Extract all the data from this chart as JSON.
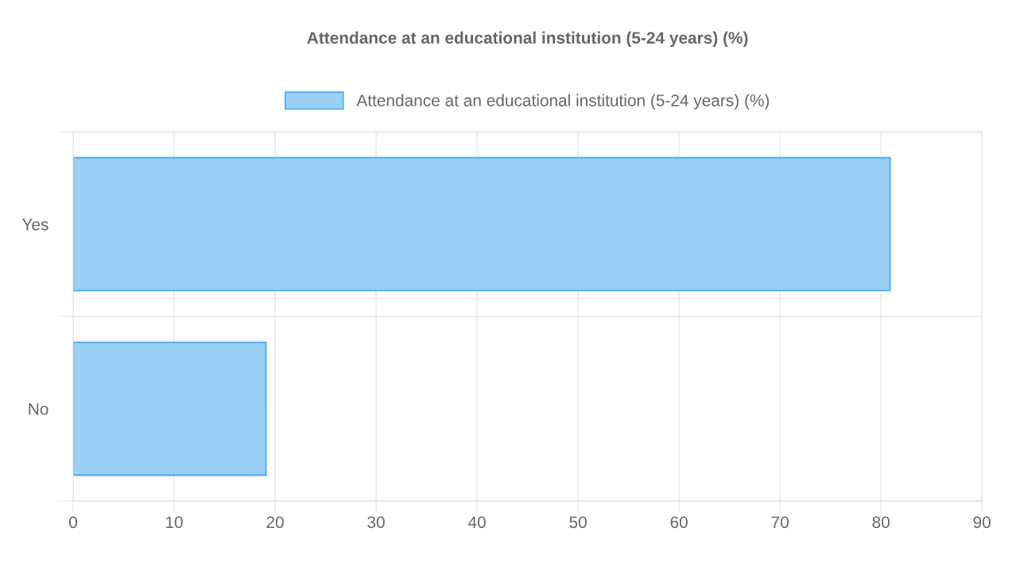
{
  "chart_data": {
    "type": "bar",
    "orientation": "horizontal",
    "title": "Attendance at an educational institution (5-24 years) (%)",
    "categories": [
      "Yes",
      "No"
    ],
    "series": [
      {
        "name": "Attendance at an educational institution (5-24 years) (%)",
        "color": "#9ad0f5",
        "values": [
          80.9,
          19.1
        ]
      }
    ],
    "xlim": [
      0,
      90
    ],
    "xticks": [
      0,
      10,
      20,
      30,
      40,
      50,
      60,
      70,
      80,
      90
    ],
    "grid": true,
    "legend": "top"
  }
}
